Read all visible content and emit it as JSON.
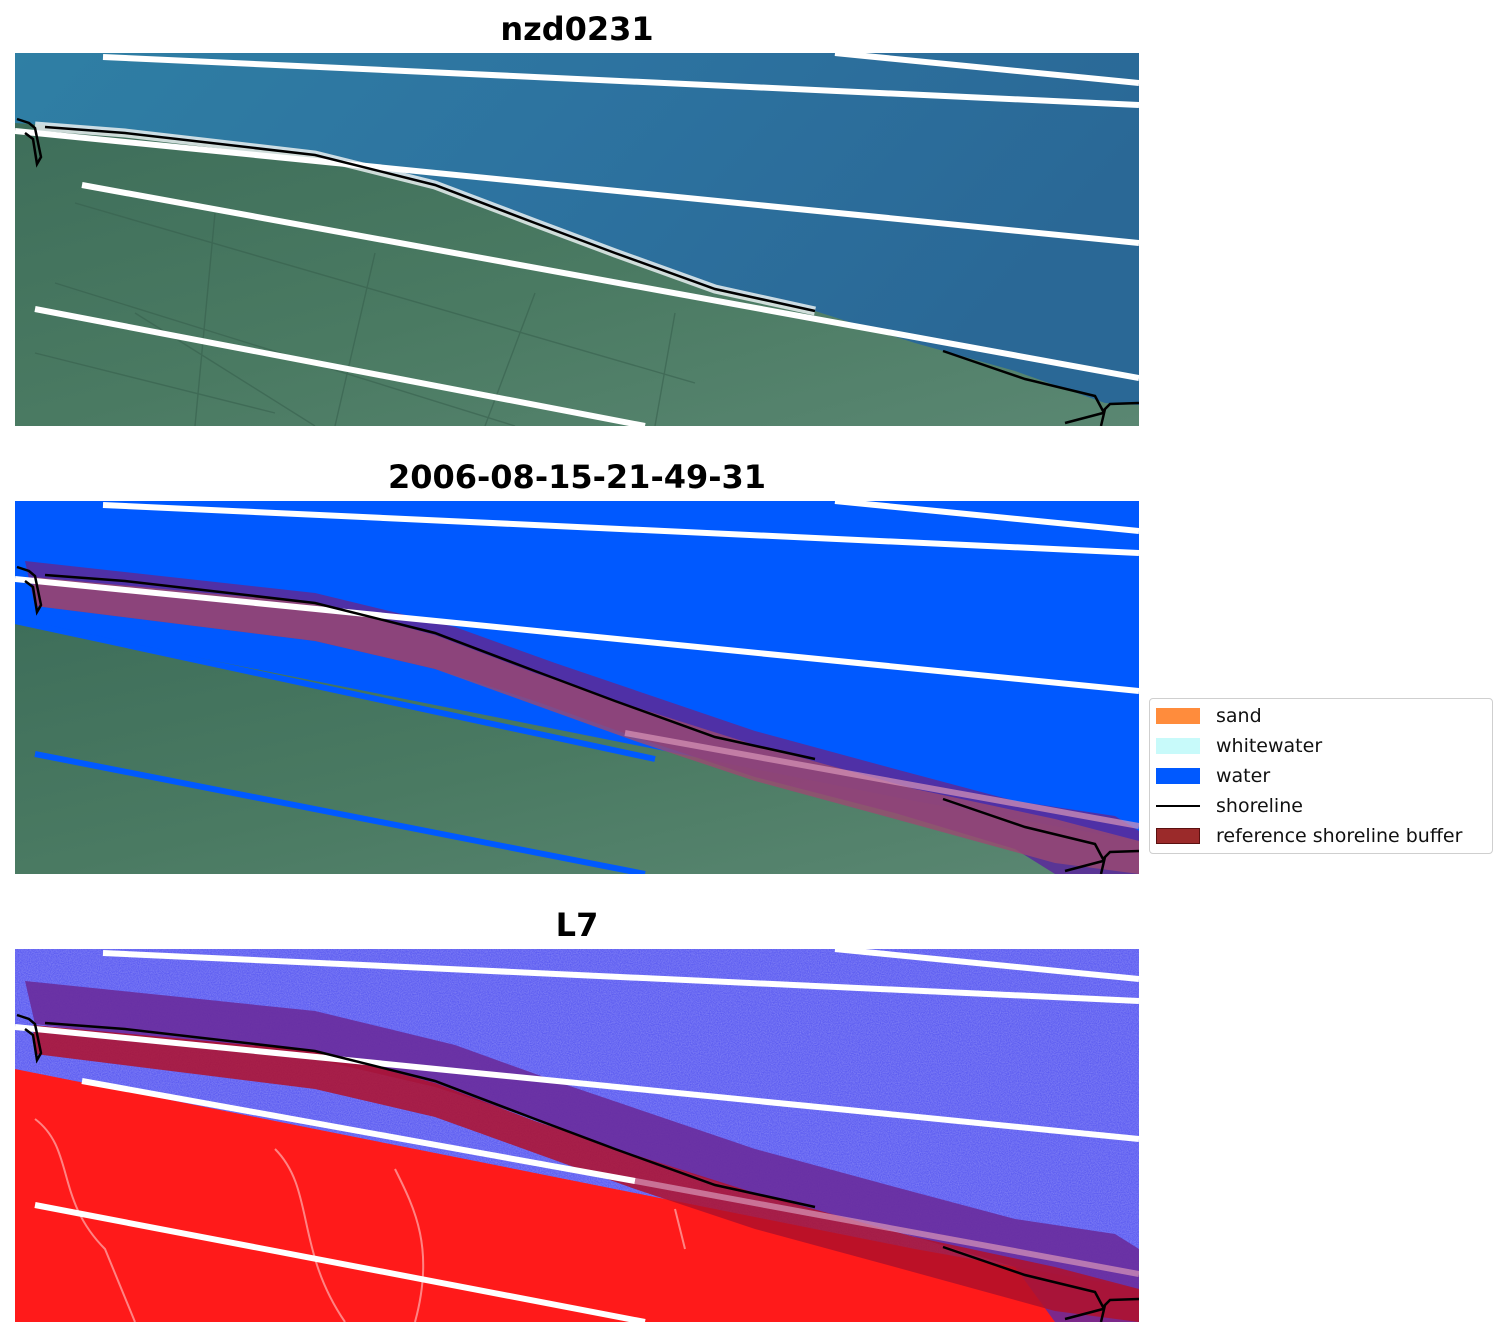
{
  "panels": [
    {
      "title": "nzd0231"
    },
    {
      "title": "2006-08-15-21-49-31"
    },
    {
      "title": "L7"
    }
  ],
  "legend": {
    "items": [
      {
        "label": "sand",
        "color": "#ff8c3c",
        "kind": "patch"
      },
      {
        "label": "whitewater",
        "color": "#c8fafa",
        "kind": "patch"
      },
      {
        "label": "water",
        "color": "#0059ff",
        "kind": "patch"
      },
      {
        "label": "shoreline",
        "color": "#000000",
        "kind": "line"
      },
      {
        "label": "reference shoreline buffer",
        "color": "#9b2a2a",
        "kind": "patch"
      }
    ]
  }
}
